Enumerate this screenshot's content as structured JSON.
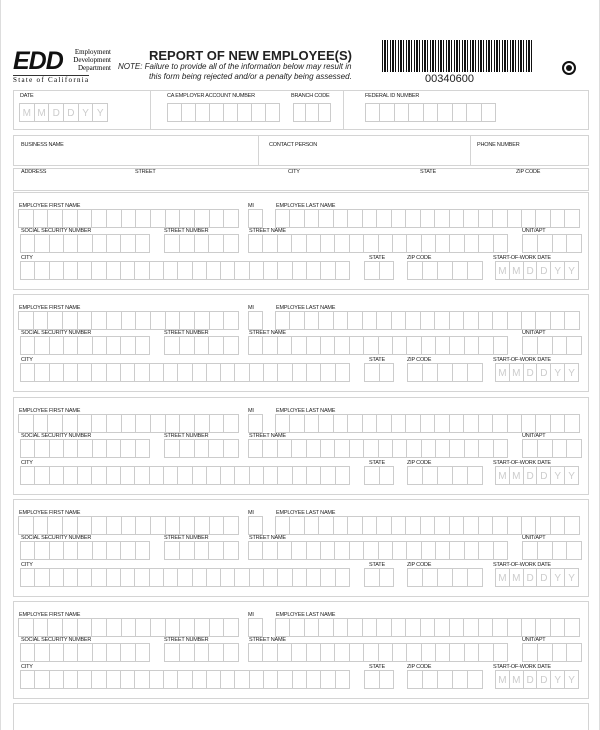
{
  "logo": {
    "acronym": "EDD",
    "lines": [
      "Employment",
      "Development",
      "Department"
    ],
    "state": "State of California"
  },
  "title": "REPORT OF NEW EMPLOYEE(S)",
  "note": "NOTE: Failure to provide all of the information below may result in",
  "note2": "this form being rejected and/or a penalty being assessed.",
  "barcode_number": "00340600",
  "header": {
    "date": "DATE",
    "date_placeholder": [
      "M",
      "M",
      "D",
      "D",
      "Y",
      "Y"
    ],
    "ca_account": "CA EMPLOYER ACCOUNT NUMBER",
    "branch": "BRANCH CODE",
    "federal": "FEDERAL ID NUMBER",
    "business": "BUSINESS NAME",
    "contact": "CONTACT PERSON",
    "phone": "PHONE NUMBER",
    "address": "ADDRESS",
    "street": "STREET",
    "city": "CITY",
    "state": "STATE",
    "zip": "ZIP CODE"
  },
  "employee": {
    "first": "EMPLOYEE FIRST NAME",
    "mi": "MI",
    "last": "EMPLOYEE LAST NAME",
    "ssn": "SOCIAL SECURITY NUMBER",
    "street_number": "STREET NUMBER",
    "street_name": "STREET NAME",
    "unit": "UNIT/APT",
    "city": "CITY",
    "state": "STATE",
    "zip": "ZIP CODE",
    "start": "START-OF-WORK DATE"
  }
}
